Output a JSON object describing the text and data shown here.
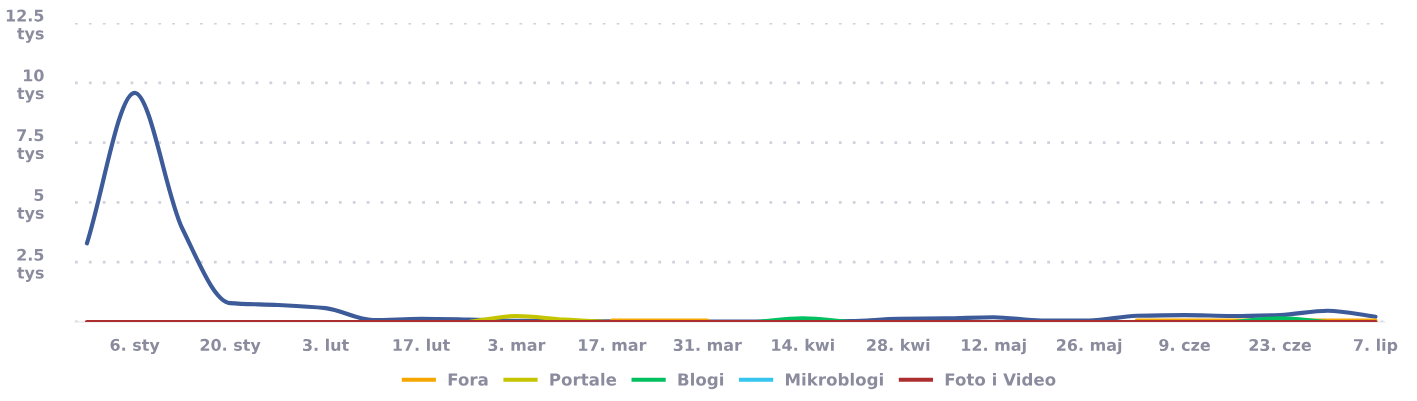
{
  "chart_data": {
    "type": "line",
    "categories": [
      null,
      "6. sty",
      null,
      "20. sty",
      null,
      "3. lut",
      null,
      "17. lut",
      null,
      "3. mar",
      null,
      "17. mar",
      null,
      "31. mar",
      null,
      "14. kwi",
      null,
      "28. kwi",
      null,
      "12. maj",
      null,
      "26. maj",
      null,
      "9. cze",
      null,
      "23. cze",
      null,
      "7. lip"
    ],
    "series": [
      {
        "color": "#3d5a99",
        "values": [
          3.29,
          9.58,
          3.9,
          0.79,
          0.71,
          0.58,
          0.08,
          0.13,
          0.1,
          0.05,
          0.05,
          0.03,
          0.03,
          0.02,
          0.02,
          0.02,
          0.04,
          0.13,
          0.15,
          0.2,
          0.06,
          0.06,
          0.26,
          0.29,
          0.25,
          0.29,
          0.47,
          0.22
        ]
      },
      {
        "name": "Fora",
        "color": "#f5a700",
        "values": [
          null,
          null,
          null,
          null,
          null,
          null,
          null,
          null,
          null,
          null,
          null,
          0.06,
          0.06,
          0.06,
          null,
          null,
          null,
          null,
          null,
          null,
          null,
          null,
          0.06,
          0.06,
          0.06,
          0.06,
          0.06,
          0.06
        ]
      },
      {
        "name": "Portale",
        "color": "#c4c400",
        "values": [
          null,
          null,
          null,
          null,
          null,
          null,
          null,
          null,
          0,
          0.25,
          0.1,
          0,
          null,
          null,
          null,
          null,
          null,
          null,
          null,
          null,
          null,
          null,
          null,
          null,
          null,
          null,
          null,
          null
        ]
      },
      {
        "name": "Blogi",
        "color": "#00c060",
        "values": [
          null,
          null,
          null,
          null,
          null,
          null,
          null,
          null,
          null,
          null,
          null,
          null,
          null,
          null,
          0,
          0.15,
          0,
          null,
          null,
          null,
          null,
          null,
          null,
          null,
          0,
          0.15,
          0,
          null
        ]
      },
      {
        "name": "Mikroblogi",
        "color": "#36c5ef",
        "values": [
          null,
          null,
          null,
          null,
          null,
          null,
          null,
          null,
          null,
          null,
          null,
          null,
          null,
          null,
          null,
          null,
          null,
          null,
          null,
          null,
          null,
          null,
          null,
          null,
          null,
          null,
          null,
          null
        ]
      },
      {
        "name": "Foto i Video",
        "color": "#ad2e2e",
        "values": [
          0,
          0,
          0,
          0,
          0,
          0,
          0,
          0,
          0,
          0,
          0,
          0,
          0,
          0,
          0,
          0,
          0,
          0,
          0,
          0,
          0,
          0,
          0,
          0,
          0,
          0,
          0,
          0
        ]
      }
    ],
    "ylim": [
      0,
      12.5
    ],
    "yticks": [
      {
        "value": 0,
        "label": null
      },
      {
        "value": 2.5,
        "label": "2.5 tys"
      },
      {
        "value": 5,
        "label": "5 tys"
      },
      {
        "value": 7.5,
        "label": "7.5 tys"
      },
      {
        "value": 10,
        "label": "10 tys"
      },
      {
        "value": 12.5,
        "label": "12.5 tys"
      }
    ],
    "grid": "y",
    "legend": "bottom",
    "marker": "none",
    "line_style": "solid"
  }
}
